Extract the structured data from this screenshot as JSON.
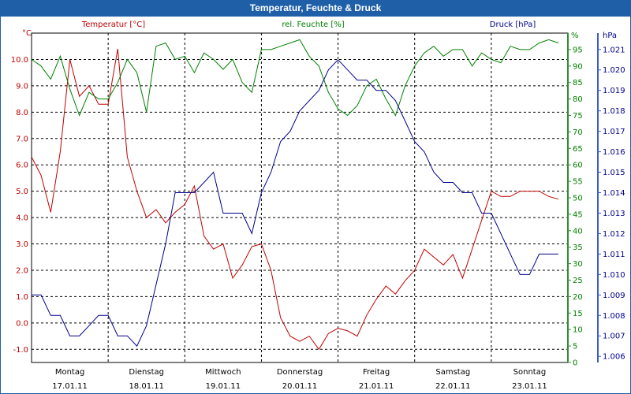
{
  "window": {
    "title": "Temperatur, Feuchte & Druck"
  },
  "colors": {
    "temperature": "#c00000",
    "humidity": "#008000",
    "pressure": "#00008b",
    "title_bar": "#1f5fa8"
  },
  "chart_data": {
    "type": "line",
    "x": [
      "17.01.11 00:00",
      "17.01.11 03:00",
      "17.01.11 06:00",
      "17.01.11 09:00",
      "17.01.11 12:00",
      "17.01.11 15:00",
      "17.01.11 18:00",
      "17.01.11 21:00",
      "18.01.11 00:00",
      "18.01.11 03:00",
      "18.01.11 06:00",
      "18.01.11 09:00",
      "18.01.11 12:00",
      "18.01.11 15:00",
      "18.01.11 18:00",
      "18.01.11 21:00",
      "19.01.11 00:00",
      "19.01.11 03:00",
      "19.01.11 06:00",
      "19.01.11 09:00",
      "19.01.11 12:00",
      "19.01.11 15:00",
      "19.01.11 18:00",
      "19.01.11 21:00",
      "20.01.11 00:00",
      "20.01.11 03:00",
      "20.01.11 06:00",
      "20.01.11 09:00",
      "20.01.11 12:00",
      "20.01.11 15:00",
      "20.01.11 18:00",
      "20.01.11 21:00",
      "21.01.11 00:00",
      "21.01.11 03:00",
      "21.01.11 06:00",
      "21.01.11 09:00",
      "21.01.11 12:00",
      "21.01.11 15:00",
      "21.01.11 18:00",
      "21.01.11 21:00",
      "22.01.11 00:00",
      "22.01.11 03:00",
      "22.01.11 06:00",
      "22.01.11 09:00",
      "22.01.11 12:00",
      "22.01.11 15:00",
      "22.01.11 18:00",
      "22.01.11 21:00",
      "23.01.11 00:00",
      "23.01.11 03:00",
      "23.01.11 06:00",
      "23.01.11 09:00",
      "23.01.11 12:00",
      "23.01.11 15:00",
      "23.01.11 18:00",
      "23.01.11 21:00"
    ],
    "x_range": [
      "17.01.11 00:00",
      "24.01.11 00:00"
    ],
    "x_day_labels": [
      {
        "day": "Montag",
        "date": "17.01.11"
      },
      {
        "day": "Dienstag",
        "date": "18.01.11"
      },
      {
        "day": "Mittwoch",
        "date": "19.01.11"
      },
      {
        "day": "Donnerstag",
        "date": "20.01.11"
      },
      {
        "day": "Freitag",
        "date": "21.01.11"
      },
      {
        "day": "Samstag",
        "date": "22.01.11"
      },
      {
        "day": "Sonntag",
        "date": "23.01.11"
      }
    ],
    "series": [
      {
        "name": "Temperatur [°C]",
        "axis": "left",
        "values": [
          6.3,
          5.6,
          4.2,
          6.5,
          10.0,
          8.6,
          9.0,
          8.3,
          8.3,
          10.4,
          6.3,
          5.0,
          4.0,
          4.3,
          3.8,
          4.2,
          4.5,
          5.2,
          3.3,
          2.8,
          3.0,
          1.7,
          2.2,
          2.9,
          3.0,
          2.0,
          0.2,
          -0.5,
          -0.7,
          -0.5,
          -1.0,
          -0.4,
          -0.2,
          -0.3,
          -0.5,
          0.3,
          0.9,
          1.4,
          1.1,
          1.6,
          2.0,
          2.8,
          2.5,
          2.2,
          2.6,
          1.7,
          2.8,
          3.9,
          5.0,
          4.8,
          4.8,
          5.0,
          5.0,
          5.0,
          4.8,
          4.7
        ]
      },
      {
        "name": "rel. Feuchte [%]",
        "axis": "right1",
        "values": [
          92,
          90,
          86,
          93,
          83,
          75,
          82,
          80,
          80,
          85,
          92,
          88,
          76,
          96,
          97,
          92,
          93,
          88,
          94,
          92,
          89,
          92,
          85,
          82,
          95,
          95,
          96,
          97,
          98,
          93,
          90,
          82,
          77,
          75,
          78,
          84,
          86,
          80,
          75,
          84,
          90,
          94,
          96,
          93,
          95,
          95,
          90,
          94,
          92,
          91,
          96,
          95,
          95,
          97,
          98,
          97
        ]
      },
      {
        "name": "Druck [hPa]",
        "axis": "right2",
        "values": [
          1.009,
          1.009,
          1.008,
          1.008,
          1.007,
          1.007,
          1.0075,
          1.008,
          1.008,
          1.007,
          1.007,
          1.0065,
          1.0075,
          1.0095,
          1.0115,
          1.014,
          1.014,
          1.014,
          1.0145,
          1.015,
          1.013,
          1.013,
          1.013,
          1.012,
          1.014,
          1.015,
          1.0165,
          1.017,
          1.018,
          1.0185,
          1.019,
          1.02,
          1.0205,
          1.02,
          1.0195,
          1.0195,
          1.019,
          1.019,
          1.0185,
          1.0175,
          1.0165,
          1.016,
          1.015,
          1.0145,
          1.0145,
          1.014,
          1.014,
          1.013,
          1.013,
          1.012,
          1.011,
          1.01,
          1.01,
          1.011,
          1.011,
          1.011
        ]
      }
    ],
    "axes": {
      "left": {
        "label": "°C",
        "range": [
          -1.5,
          11.0
        ],
        "ticks": [
          "10.0",
          "9.0",
          "8.0",
          "7.0",
          "6.0",
          "5.0",
          "4.0",
          "3.0",
          "2.0",
          "1.0",
          "0.0",
          "-1.0"
        ]
      },
      "right1": {
        "label": "%",
        "range": [
          0,
          100
        ],
        "ticks": [
          "95",
          "90",
          "85",
          "80",
          "75",
          "70",
          "65",
          "60",
          "55",
          "50",
          "45",
          "40",
          "35",
          "30",
          "25",
          "20",
          "15",
          "10",
          "5",
          "0"
        ]
      },
      "right2": {
        "label": "hPa",
        "range": [
          1.0057,
          1.0218
        ],
        "ticks": [
          "1.021",
          "1.020",
          "1.019",
          "1.018",
          "1.017",
          "1.016",
          "1.015",
          "1.014",
          "1.013",
          "1.012",
          "1.011",
          "1.010",
          "1.009",
          "1.008",
          "1.007",
          "1.006"
        ]
      }
    },
    "grid": true,
    "legend": "top"
  }
}
